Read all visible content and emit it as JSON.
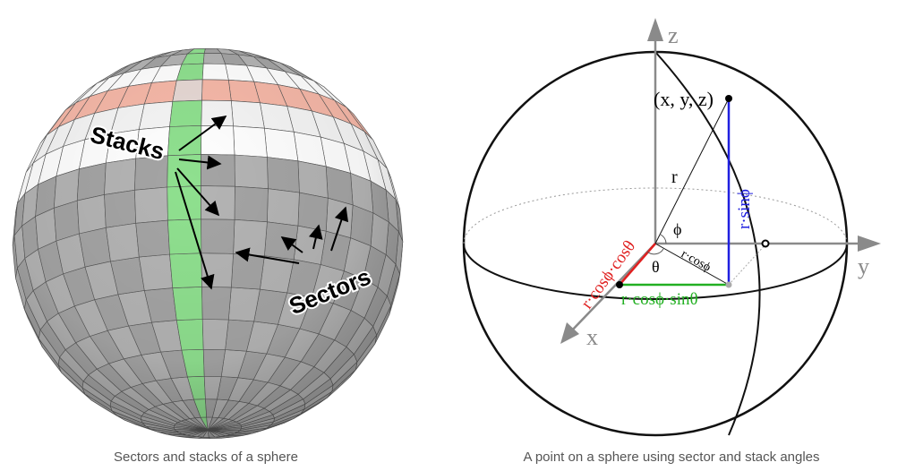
{
  "left_figure": {
    "caption": "Sectors and stacks of a sphere",
    "stacks_label": "Stacks",
    "sectors_label": "Sectors",
    "colors": {
      "stack_highlight": "#f6b8a8",
      "sector_highlight": "#8fe08f",
      "intersection": "#e6d8d4",
      "white_band": "#ffffff",
      "shade": "#a9a9a9"
    }
  },
  "right_figure": {
    "caption": "A point on a sphere using sector and stack angles",
    "axis_z": "z",
    "axis_y": "y",
    "axis_x": "x",
    "point_label": "(x, y, z)",
    "radius_label": "r",
    "phi_label": "ϕ",
    "theta_label": "θ",
    "r_cos_phi_label": "r·cosϕ",
    "r_sin_phi_label": "r·sinϕ",
    "r_cos_cos_label": "r·cosϕ·cosθ",
    "r_cos_sin_label": "r·cosϕ·sinθ",
    "colors": {
      "red": "#e02020",
      "green": "#22b022",
      "blue": "#2020e0",
      "axis": "#8a8a8a"
    }
  }
}
